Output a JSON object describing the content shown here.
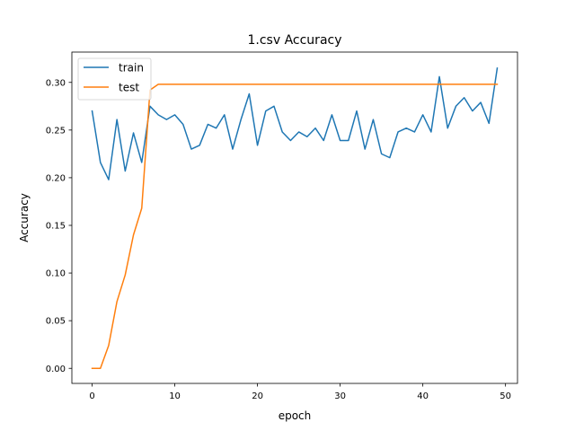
{
  "chart_data": {
    "type": "line",
    "title": "1.csv Accuracy",
    "xlabel": "epoch",
    "ylabel": "Accuracy",
    "xlim": [
      -2.45,
      51.45
    ],
    "ylim": [
      -0.0158,
      0.3318
    ],
    "xticks": [
      0,
      10,
      20,
      30,
      40,
      50
    ],
    "yticks": [
      0.0,
      0.05,
      0.1,
      0.15,
      0.2,
      0.25,
      0.3
    ],
    "ytick_labels": [
      "0.00",
      "0.05",
      "0.10",
      "0.15",
      "0.20",
      "0.25",
      "0.30"
    ],
    "grid": false,
    "legend": "top-left",
    "series": [
      {
        "name": "train",
        "color": "#1f77b4",
        "x": [
          0,
          1,
          2,
          3,
          4,
          5,
          6,
          7,
          8,
          9,
          10,
          11,
          12,
          13,
          14,
          15,
          16,
          17,
          18,
          19,
          20,
          21,
          22,
          23,
          24,
          25,
          26,
          27,
          28,
          29,
          30,
          31,
          32,
          33,
          34,
          35,
          36,
          37,
          38,
          39,
          40,
          41,
          42,
          43,
          44,
          45,
          46,
          47,
          48,
          49
        ],
        "values": [
          0.27,
          0.216,
          0.198,
          0.261,
          0.207,
          0.247,
          0.216,
          0.275,
          0.266,
          0.261,
          0.266,
          0.256,
          0.23,
          0.234,
          0.256,
          0.252,
          0.266,
          0.23,
          0.261,
          0.288,
          0.234,
          0.27,
          0.275,
          0.248,
          0.239,
          0.248,
          0.243,
          0.252,
          0.239,
          0.266,
          0.239,
          0.239,
          0.27,
          0.23,
          0.261,
          0.225,
          0.221,
          0.248,
          0.252,
          0.248,
          0.266,
          0.248,
          0.306,
          0.252,
          0.275,
          0.284,
          0.27,
          0.279,
          0.257,
          0.315
        ]
      },
      {
        "name": "test",
        "color": "#ff7f0e",
        "x": [
          0,
          1,
          2,
          3,
          4,
          5,
          6,
          7,
          8,
          9,
          10,
          11,
          12,
          13,
          14,
          15,
          16,
          17,
          18,
          19,
          20,
          21,
          22,
          23,
          24,
          25,
          26,
          27,
          28,
          29,
          30,
          31,
          32,
          33,
          34,
          35,
          36,
          37,
          38,
          39,
          40,
          41,
          42,
          43,
          44,
          45,
          46,
          47,
          48,
          49
        ],
        "values": [
          0.0,
          0.0,
          0.024,
          0.07,
          0.098,
          0.14,
          0.168,
          0.292,
          0.298,
          0.298,
          0.298,
          0.298,
          0.298,
          0.298,
          0.298,
          0.298,
          0.298,
          0.298,
          0.298,
          0.298,
          0.298,
          0.298,
          0.298,
          0.298,
          0.298,
          0.298,
          0.298,
          0.298,
          0.298,
          0.298,
          0.298,
          0.298,
          0.298,
          0.298,
          0.298,
          0.298,
          0.298,
          0.298,
          0.298,
          0.298,
          0.298,
          0.298,
          0.298,
          0.298,
          0.298,
          0.298,
          0.298,
          0.298,
          0.298,
          0.298
        ]
      }
    ]
  }
}
